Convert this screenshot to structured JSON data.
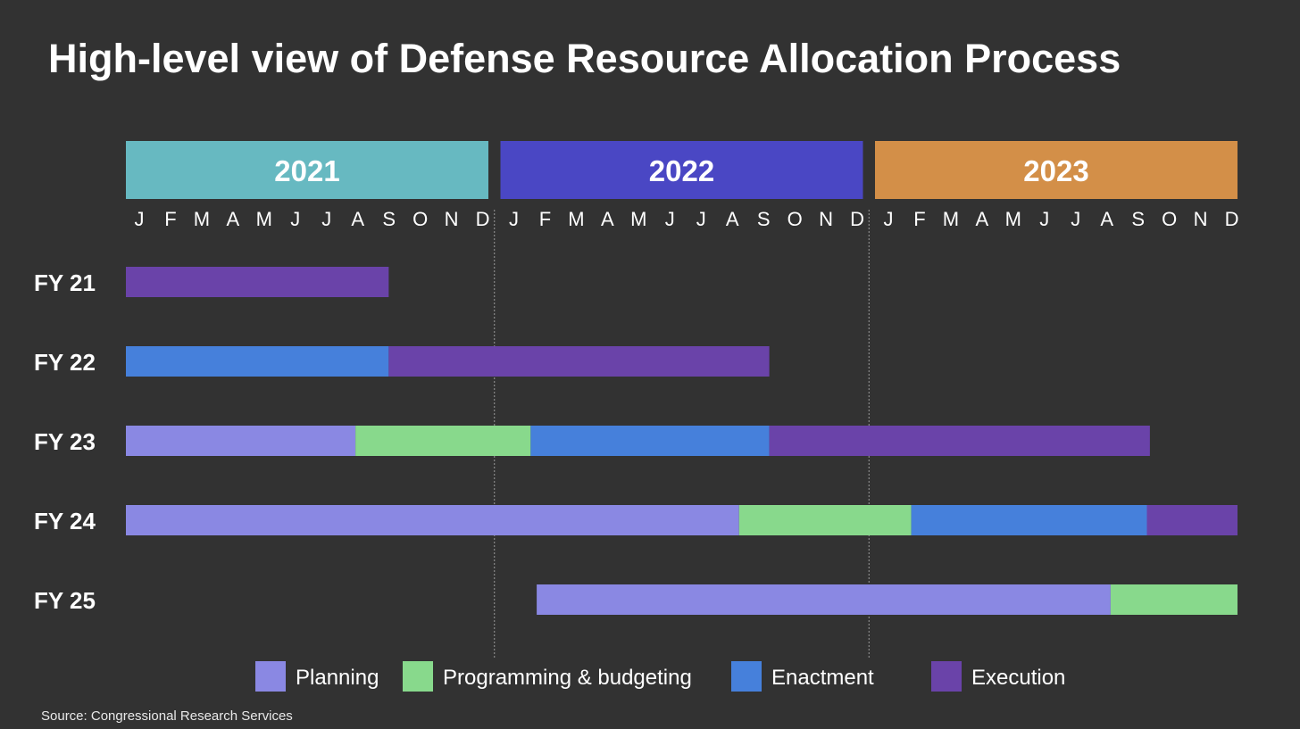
{
  "title": "High-level view of Defense Resource Allocation Process",
  "source": "Source: Congressional Research Services",
  "chart_data": {
    "type": "gantt",
    "title": "High-level view of Defense Resource Allocation Process",
    "years": [
      {
        "label": "2021",
        "color": "#67b9c1"
      },
      {
        "label": "2022",
        "color": "#4a47c4"
      },
      {
        "label": "2023",
        "color": "#d38f48"
      }
    ],
    "months": [
      "J",
      "F",
      "M",
      "A",
      "M",
      "J",
      "J",
      "A",
      "S",
      "O",
      "N",
      "D"
    ],
    "time_unit": "months from Jan 2021",
    "x_range": [
      0,
      36
    ],
    "rows": [
      {
        "label": "FY 21",
        "segments": [
          {
            "phase": "Execution",
            "start": 0,
            "end": 8.7
          }
        ]
      },
      {
        "label": "FY 22",
        "segments": [
          {
            "phase": "Enactment",
            "start": 0,
            "end": 8.7
          },
          {
            "phase": "Execution",
            "start": 8.7,
            "end": 20.9
          }
        ]
      },
      {
        "label": "FY 23",
        "segments": [
          {
            "phase": "Planning",
            "start": 0,
            "end": 7.6
          },
          {
            "phase": "Programming & budgeting",
            "start": 7.6,
            "end": 13.0
          },
          {
            "phase": "Enactment",
            "start": 13.0,
            "end": 20.9
          },
          {
            "phase": "Execution",
            "start": 20.9,
            "end": 33.1
          }
        ]
      },
      {
        "label": "FY 24",
        "segments": [
          {
            "phase": "Planning",
            "start": 0,
            "end": 19.9
          },
          {
            "phase": "Programming & budgeting",
            "start": 19.9,
            "end": 25.2
          },
          {
            "phase": "Enactment",
            "start": 25.2,
            "end": 33.0
          },
          {
            "phase": "Execution",
            "start": 33.0,
            "end": 36.0
          }
        ]
      },
      {
        "label": "FY 25",
        "segments": [
          {
            "phase": "Planning",
            "start": 13.2,
            "end": 31.8
          },
          {
            "phase": "Programming & budgeting",
            "start": 31.8,
            "end": 36.0
          }
        ]
      }
    ],
    "legend": [
      {
        "label": "Planning",
        "color": "#8a88e3"
      },
      {
        "label": "Programming & budgeting",
        "color": "#88d98c"
      },
      {
        "label": "Enactment",
        "color": "#4680db"
      },
      {
        "label": "Execution",
        "color": "#6a43a9"
      }
    ],
    "legend_position": "bottom",
    "year_dividers": "dotted"
  }
}
